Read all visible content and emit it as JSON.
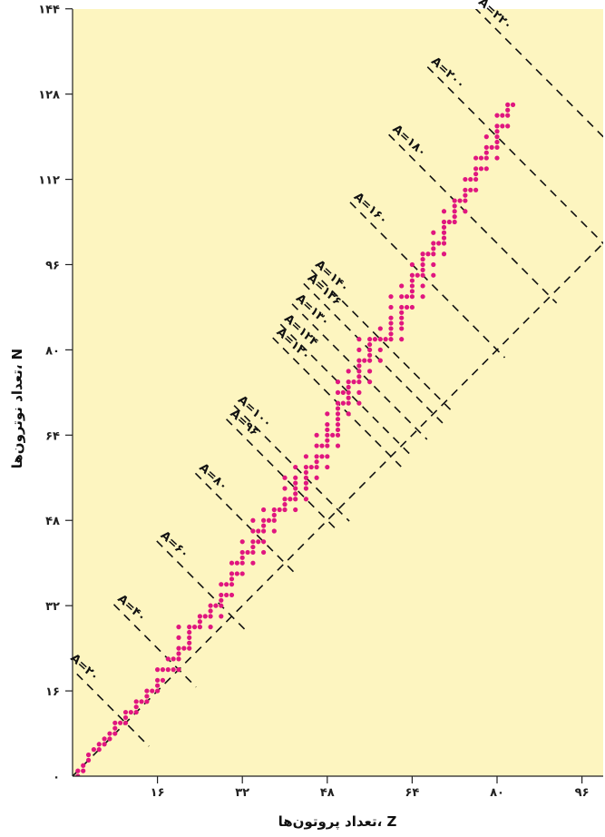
{
  "chart_data": {
    "type": "scatter",
    "xlabel": "تعداد پروتون‌ها، Z",
    "ylabel": "تعداد نوترون‌ها، N",
    "xlim": [
      0,
      100
    ],
    "ylim": [
      0,
      144
    ],
    "x_ticks": [
      {
        "value": 16,
        "label": "۱۶"
      },
      {
        "value": 32,
        "label": "۳۲"
      },
      {
        "value": 48,
        "label": "۴۸"
      },
      {
        "value": 64,
        "label": "۶۴"
      },
      {
        "value": 80,
        "label": "۸۰"
      },
      {
        "value": 96,
        "label": "۹۶"
      }
    ],
    "y_ticks": [
      {
        "value": 0,
        "label": "۰"
      },
      {
        "value": 16,
        "label": "۱۶"
      },
      {
        "value": 32,
        "label": "۳۲"
      },
      {
        "value": 48,
        "label": "۴۸"
      },
      {
        "value": 64,
        "label": "۶۴"
      },
      {
        "value": 80,
        "label": "۸۰"
      },
      {
        "value": 96,
        "label": "۹۶"
      },
      {
        "value": 112,
        "label": "۱۱۲"
      },
      {
        "value": 128,
        "label": "۱۲۸"
      },
      {
        "value": 144,
        "label": "۱۴۴"
      }
    ],
    "reference_line": {
      "name": "N = Z",
      "from": [
        0,
        0
      ],
      "to": [
        100,
        100
      ]
    },
    "isobars": [
      {
        "A": 20,
        "label": "A=۲۰"
      },
      {
        "A": 40,
        "label": "A=۴۰"
      },
      {
        "A": 60,
        "label": "A=۶۰"
      },
      {
        "A": 80,
        "label": "A=۸۰"
      },
      {
        "A": 96,
        "label": "A=۹۶"
      },
      {
        "A": 100,
        "label": "A=۱۰۰"
      },
      {
        "A": 120,
        "label": "A=۱۲۰"
      },
      {
        "A": 124,
        "label": "A=۱۲۴"
      },
      {
        "A": 130,
        "label": "A=۱۳۰"
      },
      {
        "A": 136,
        "label": "A=۱۳۶"
      },
      {
        "A": 140,
        "label": "A=۱۴۰"
      },
      {
        "A": 160,
        "label": "A=۱۶۰"
      },
      {
        "A": 180,
        "label": "A=۱۸۰"
      },
      {
        "A": 200,
        "label": "A=۲۰۰"
      },
      {
        "A": 220,
        "label": "A=۲۲۰"
      }
    ],
    "stable_nuclides": [
      [
        1,
        0
      ],
      [
        1,
        1
      ],
      [
        2,
        1
      ],
      [
        2,
        2
      ],
      [
        3,
        3
      ],
      [
        3,
        4
      ],
      [
        4,
        5
      ],
      [
        5,
        5
      ],
      [
        5,
        6
      ],
      [
        6,
        6
      ],
      [
        6,
        7
      ],
      [
        7,
        7
      ],
      [
        7,
        8
      ],
      [
        8,
        8
      ],
      [
        8,
        9
      ],
      [
        8,
        10
      ],
      [
        9,
        10
      ],
      [
        10,
        10
      ],
      [
        10,
        11
      ],
      [
        10,
        12
      ],
      [
        11,
        12
      ],
      [
        12,
        12
      ],
      [
        12,
        13
      ],
      [
        12,
        14
      ],
      [
        13,
        14
      ],
      [
        14,
        14
      ],
      [
        14,
        15
      ],
      [
        14,
        16
      ],
      [
        15,
        16
      ],
      [
        16,
        16
      ],
      [
        16,
        17
      ],
      [
        16,
        18
      ],
      [
        16,
        20
      ],
      [
        17,
        18
      ],
      [
        17,
        20
      ],
      [
        18,
        20
      ],
      [
        18,
        22
      ],
      [
        19,
        20
      ],
      [
        19,
        22
      ],
      [
        20,
        20
      ],
      [
        20,
        22
      ],
      [
        20,
        23
      ],
      [
        20,
        24
      ],
      [
        20,
        26
      ],
      [
        20,
        28
      ],
      [
        21,
        24
      ],
      [
        22,
        24
      ],
      [
        22,
        25
      ],
      [
        22,
        26
      ],
      [
        22,
        27
      ],
      [
        22,
        28
      ],
      [
        23,
        28
      ],
      [
        24,
        28
      ],
      [
        24,
        29
      ],
      [
        24,
        30
      ],
      [
        25,
        30
      ],
      [
        26,
        28
      ],
      [
        26,
        30
      ],
      [
        26,
        31
      ],
      [
        26,
        32
      ],
      [
        27,
        32
      ],
      [
        28,
        30
      ],
      [
        28,
        32
      ],
      [
        28,
        33
      ],
      [
        28,
        34
      ],
      [
        28,
        36
      ],
      [
        29,
        34
      ],
      [
        29,
        36
      ],
      [
        30,
        34
      ],
      [
        30,
        36
      ],
      [
        30,
        37
      ],
      [
        30,
        38
      ],
      [
        30,
        40
      ],
      [
        31,
        38
      ],
      [
        31,
        40
      ],
      [
        32,
        38
      ],
      [
        32,
        40
      ],
      [
        32,
        41
      ],
      [
        32,
        42
      ],
      [
        32,
        44
      ],
      [
        33,
        42
      ],
      [
        34,
        40
      ],
      [
        34,
        42
      ],
      [
        34,
        43
      ],
      [
        34,
        44
      ],
      [
        34,
        46
      ],
      [
        34,
        48
      ],
      [
        35,
        44
      ],
      [
        35,
        46
      ],
      [
        36,
        42
      ],
      [
        36,
        44
      ],
      [
        36,
        46
      ],
      [
        36,
        47
      ],
      [
        36,
        48
      ],
      [
        36,
        50
      ],
      [
        37,
        48
      ],
      [
        38,
        46
      ],
      [
        38,
        48
      ],
      [
        38,
        49
      ],
      [
        38,
        50
      ],
      [
        39,
        50
      ],
      [
        40,
        50
      ],
      [
        40,
        51
      ],
      [
        40,
        52
      ],
      [
        40,
        54
      ],
      [
        40,
        56
      ],
      [
        41,
        52
      ],
      [
        42,
        50
      ],
      [
        42,
        52
      ],
      [
        42,
        53
      ],
      [
        42,
        54
      ],
      [
        42,
        55
      ],
      [
        42,
        56
      ],
      [
        42,
        58
      ],
      [
        44,
        52
      ],
      [
        44,
        54
      ],
      [
        44,
        55
      ],
      [
        44,
        56
      ],
      [
        44,
        57
      ],
      [
        44,
        58
      ],
      [
        44,
        60
      ],
      [
        45,
        58
      ],
      [
        46,
        56
      ],
      [
        46,
        58
      ],
      [
        46,
        59
      ],
      [
        46,
        60
      ],
      [
        46,
        62
      ],
      [
        46,
        64
      ],
      [
        47,
        60
      ],
      [
        47,
        62
      ],
      [
        48,
        58
      ],
      [
        48,
        60
      ],
      [
        48,
        62
      ],
      [
        48,
        63
      ],
      [
        48,
        64
      ],
      [
        48,
        65
      ],
      [
        48,
        66
      ],
      [
        48,
        68
      ],
      [
        49,
        64
      ],
      [
        50,
        62
      ],
      [
        50,
        64
      ],
      [
        50,
        65
      ],
      [
        50,
        66
      ],
      [
        50,
        67
      ],
      [
        50,
        68
      ],
      [
        50,
        69
      ],
      [
        50,
        70
      ],
      [
        50,
        72
      ],
      [
        50,
        74
      ],
      [
        51,
        70
      ],
      [
        51,
        72
      ],
      [
        52,
        68
      ],
      [
        52,
        70
      ],
      [
        52,
        71
      ],
      [
        52,
        72
      ],
      [
        52,
        73
      ],
      [
        52,
        74
      ],
      [
        52,
        76
      ],
      [
        53,
        74
      ],
      [
        54,
        70
      ],
      [
        54,
        72
      ],
      [
        54,
        74
      ],
      [
        54,
        75
      ],
      [
        54,
        76
      ],
      [
        54,
        77
      ],
      [
        54,
        78
      ],
      [
        54,
        80
      ],
      [
        54,
        82
      ],
      [
        55,
        78
      ],
      [
        56,
        74
      ],
      [
        56,
        76
      ],
      [
        56,
        78
      ],
      [
        56,
        79
      ],
      [
        56,
        80
      ],
      [
        56,
        81
      ],
      [
        56,
        82
      ],
      [
        57,
        82
      ],
      [
        58,
        78
      ],
      [
        58,
        80
      ],
      [
        58,
        82
      ],
      [
        58,
        84
      ],
      [
        59,
        82
      ],
      [
        60,
        82
      ],
      [
        60,
        83
      ],
      [
        60,
        84
      ],
      [
        60,
        85
      ],
      [
        60,
        86
      ],
      [
        60,
        88
      ],
      [
        60,
        90
      ],
      [
        62,
        82
      ],
      [
        62,
        84
      ],
      [
        62,
        85
      ],
      [
        62,
        86
      ],
      [
        62,
        87
      ],
      [
        62,
        88
      ],
      [
        62,
        90
      ],
      [
        62,
        92
      ],
      [
        63,
        88
      ],
      [
        63,
        90
      ],
      [
        64,
        88
      ],
      [
        64,
        90
      ],
      [
        64,
        91
      ],
      [
        64,
        92
      ],
      [
        64,
        93
      ],
      [
        64,
        94
      ],
      [
        64,
        96
      ],
      [
        65,
        94
      ],
      [
        66,
        90
      ],
      [
        66,
        92
      ],
      [
        66,
        94
      ],
      [
        66,
        95
      ],
      [
        66,
        96
      ],
      [
        66,
        97
      ],
      [
        66,
        98
      ],
      [
        67,
        98
      ],
      [
        68,
        94
      ],
      [
        68,
        96
      ],
      [
        68,
        98
      ],
      [
        68,
        99
      ],
      [
        68,
        100
      ],
      [
        68,
        102
      ],
      [
        69,
        100
      ],
      [
        70,
        98
      ],
      [
        70,
        100
      ],
      [
        70,
        101
      ],
      [
        70,
        102
      ],
      [
        70,
        103
      ],
      [
        70,
        104
      ],
      [
        70,
        106
      ],
      [
        71,
        104
      ],
      [
        72,
        104
      ],
      [
        72,
        105
      ],
      [
        72,
        106
      ],
      [
        72,
        107
      ],
      [
        72,
        108
      ],
      [
        73,
        108
      ],
      [
        74,
        106
      ],
      [
        74,
        108
      ],
      [
        74,
        109
      ],
      [
        74,
        110
      ],
      [
        74,
        112
      ],
      [
        75,
        110
      ],
      [
        75,
        112
      ],
      [
        76,
        110
      ],
      [
        76,
        112
      ],
      [
        76,
        113
      ],
      [
        76,
        114
      ],
      [
        76,
        116
      ],
      [
        77,
        114
      ],
      [
        77,
        116
      ],
      [
        78,
        114
      ],
      [
        78,
        116
      ],
      [
        78,
        117
      ],
      [
        78,
        118
      ],
      [
        78,
        120
      ],
      [
        79,
        118
      ],
      [
        80,
        116
      ],
      [
        80,
        118
      ],
      [
        80,
        119
      ],
      [
        80,
        120
      ],
      [
        80,
        121
      ],
      [
        80,
        122
      ],
      [
        80,
        124
      ],
      [
        81,
        122
      ],
      [
        81,
        124
      ],
      [
        82,
        122
      ],
      [
        82,
        124
      ],
      [
        82,
        125
      ],
      [
        82,
        126
      ],
      [
        83,
        126
      ]
    ]
  }
}
